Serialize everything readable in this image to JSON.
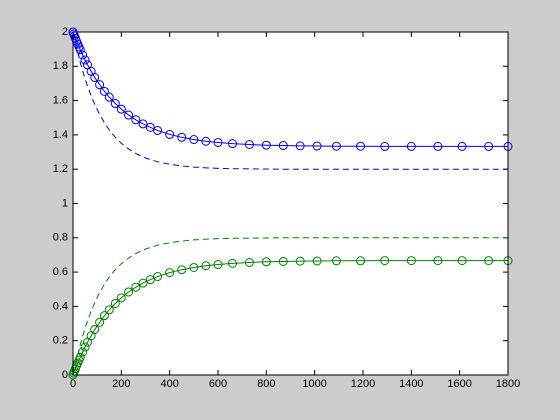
{
  "chart_data": {
    "type": "line",
    "x": [
      0,
      3,
      6,
      10,
      15,
      20,
      25,
      30,
      40,
      50,
      60,
      75,
      90,
      110,
      130,
      150,
      175,
      200,
      230,
      260,
      290,
      320,
      350,
      400,
      450,
      500,
      550,
      600,
      660,
      730,
      800,
      870,
      940,
      1010,
      1090,
      1190,
      1290,
      1400,
      1510,
      1610,
      1720,
      1800
    ],
    "series": [
      {
        "color": "#0000ff",
        "line_style": "solid",
        "marker": "o",
        "values": [
          2.0,
          1.989,
          1.978,
          1.964,
          1.946,
          1.929,
          1.913,
          1.897,
          1.866,
          1.837,
          1.809,
          1.771,
          1.735,
          1.693,
          1.654,
          1.62,
          1.583,
          1.55,
          1.516,
          1.488,
          1.464,
          1.444,
          1.426,
          1.403,
          1.386,
          1.373,
          1.363,
          1.356,
          1.349,
          1.344,
          1.34,
          1.338,
          1.336,
          1.335,
          1.334,
          1.334,
          1.333,
          1.333,
          1.333,
          1.333,
          1.333,
          1.333
        ]
      },
      {
        "color": "#0000ff",
        "line_style": "dashed",
        "marker": "none",
        "values": [
          2.0,
          1.98,
          1.961,
          1.936,
          1.906,
          1.877,
          1.85,
          1.823,
          1.773,
          1.727,
          1.685,
          1.628,
          1.578,
          1.52,
          1.471,
          1.429,
          1.386,
          1.351,
          1.318,
          1.292,
          1.271,
          1.256,
          1.243,
          1.229,
          1.219,
          1.212,
          1.208,
          1.205,
          1.203,
          1.202,
          1.201,
          1.2,
          1.2,
          1.2,
          1.2,
          1.2,
          1.2,
          1.2,
          1.2,
          1.2,
          1.2,
          1.2
        ]
      },
      {
        "color": "#008000",
        "line_style": "solid",
        "marker": "o",
        "values": [
          0,
          0.011,
          0.022,
          0.036,
          0.054,
          0.071,
          0.087,
          0.103,
          0.134,
          0.163,
          0.191,
          0.229,
          0.265,
          0.307,
          0.346,
          0.38,
          0.417,
          0.45,
          0.484,
          0.512,
          0.536,
          0.556,
          0.574,
          0.597,
          0.614,
          0.627,
          0.637,
          0.644,
          0.651,
          0.656,
          0.66,
          0.662,
          0.664,
          0.665,
          0.666,
          0.666,
          0.667,
          0.667,
          0.667,
          0.667,
          0.667,
          0.667
        ]
      },
      {
        "color": "#008000",
        "line_style": "dashed",
        "marker": "none",
        "values": [
          0,
          0.02,
          0.039,
          0.064,
          0.094,
          0.123,
          0.15,
          0.177,
          0.227,
          0.273,
          0.315,
          0.372,
          0.422,
          0.48,
          0.529,
          0.571,
          0.614,
          0.649,
          0.682,
          0.708,
          0.729,
          0.744,
          0.757,
          0.771,
          0.781,
          0.788,
          0.792,
          0.795,
          0.797,
          0.798,
          0.799,
          0.8,
          0.8,
          0.8,
          0.8,
          0.8,
          0.8,
          0.8,
          0.8,
          0.8,
          0.8,
          0.8
        ]
      }
    ],
    "xlim": [
      0,
      1800
    ],
    "xticks": [
      0,
      200,
      400,
      600,
      800,
      1000,
      1200,
      1400,
      1600,
      1800
    ],
    "ylim": [
      0,
      2
    ],
    "yticks": [
      0,
      0.2,
      0.4,
      0.6,
      0.8,
      1,
      1.2,
      1.4,
      1.6,
      1.8,
      2
    ],
    "grid": false
  }
}
